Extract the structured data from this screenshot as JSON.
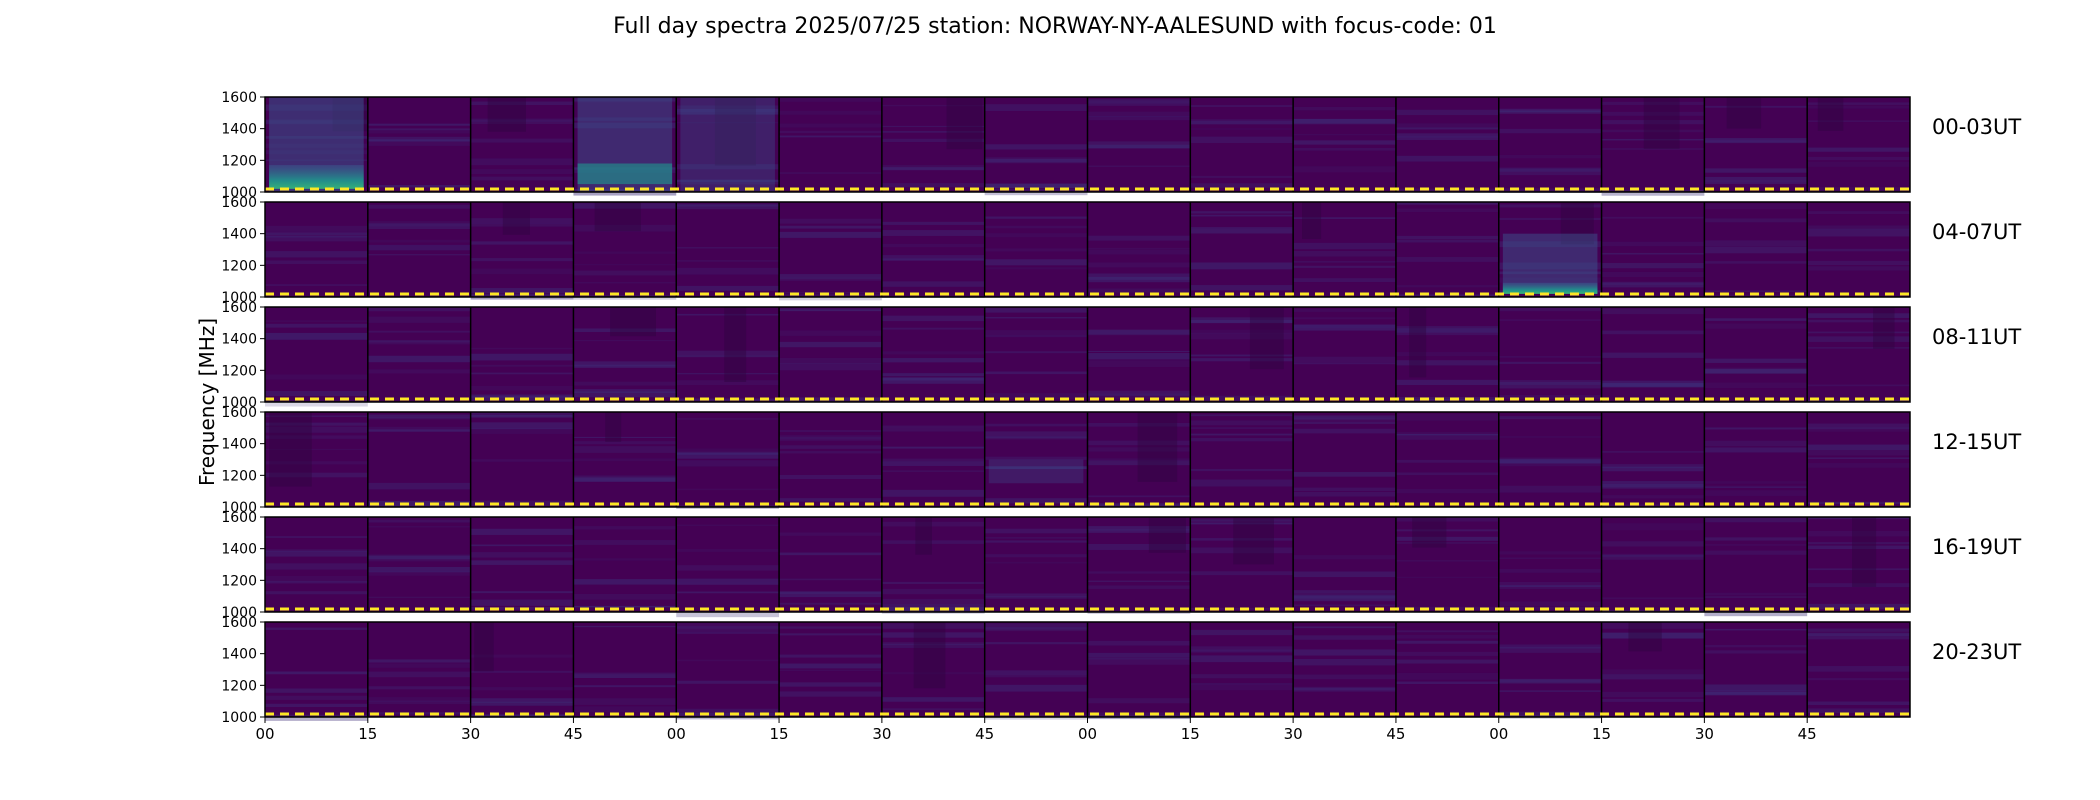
{
  "chart_data": {
    "type": "heatmap",
    "title": "Full day spectra 2025/07/25 station: NORWAY-NY-AALESUND with focus-code: 01",
    "ylabel": "Frequency [MHz]",
    "ylim": [
      1000,
      1600
    ],
    "yticks": [
      "1600",
      "1400",
      "1200",
      "1000"
    ],
    "xticks": [
      "00",
      "15",
      "30",
      "45",
      "00",
      "15",
      "30",
      "45",
      "00",
      "15",
      "30",
      "45",
      "00",
      "15",
      "30",
      "45"
    ],
    "colormap": {
      "name": "viridis",
      "low": "#440154",
      "mid": "#3b528b",
      "teal": "#21918c",
      "high": "#5ec962"
    },
    "threshold_line_color": "#fde725",
    "rows": [
      {
        "label": "00-03UT",
        "bursts": [
          {
            "panel": 0,
            "fmin": 1000,
            "fmax": 1600,
            "intensity": 0.35
          },
          {
            "panel": 0,
            "fmin": 1020,
            "fmax": 1170,
            "intensity": 0.75
          },
          {
            "panel": 3,
            "fmin": 1000,
            "fmax": 1600,
            "intensity": 0.3
          },
          {
            "panel": 3,
            "fmin": 1050,
            "fmax": 1180,
            "intensity": 0.45
          },
          {
            "panel": 4,
            "fmin": 1000,
            "fmax": 1600,
            "intensity": 0.18
          }
        ]
      },
      {
        "label": "04-07UT",
        "bursts": [
          {
            "panel": 12,
            "fmin": 1020,
            "fmax": 1400,
            "intensity": 0.3
          },
          {
            "panel": 12,
            "fmin": 1020,
            "fmax": 1090,
            "intensity": 0.8
          }
        ]
      },
      {
        "label": "08-11UT",
        "bursts": []
      },
      {
        "label": "12-15UT",
        "bursts": [
          {
            "panel": 7,
            "fmin": 1150,
            "fmax": 1300,
            "intensity": 0.12
          }
        ]
      },
      {
        "label": "16-19UT",
        "bursts": []
      },
      {
        "label": "20-23UT",
        "bursts": []
      }
    ]
  }
}
